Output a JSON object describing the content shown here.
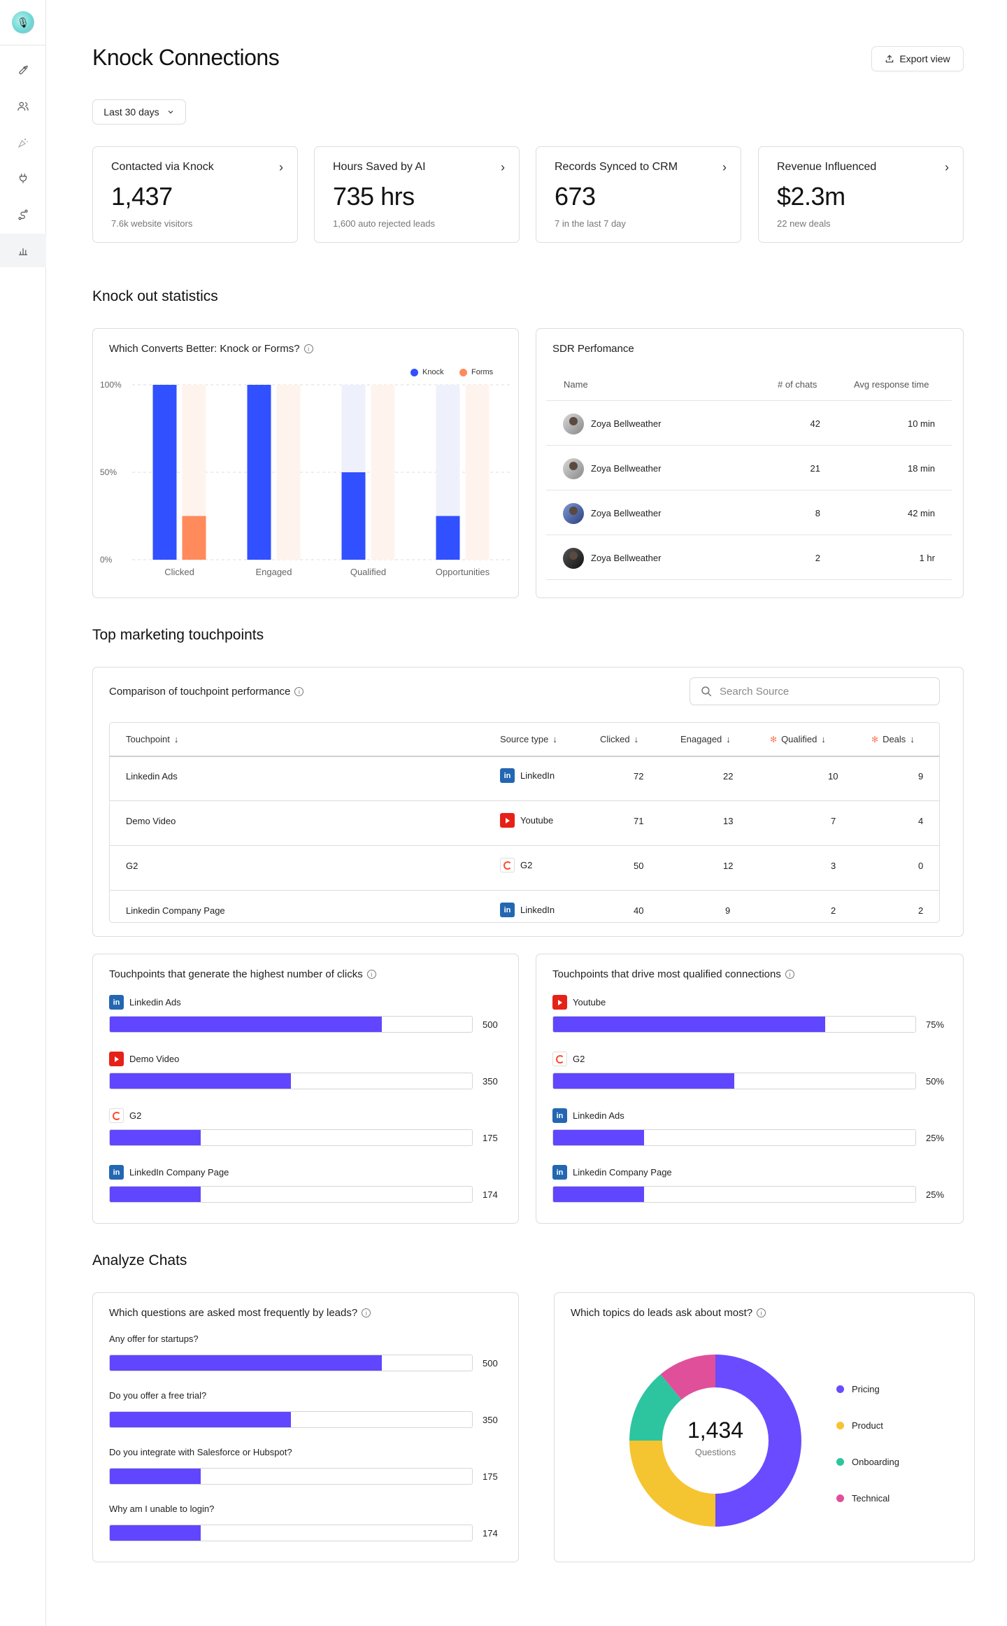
{
  "sidebar": {
    "logo_icon": "avatar-logo",
    "items": [
      {
        "name": "rocket-icon"
      },
      {
        "name": "users-icon"
      },
      {
        "name": "sparkles-icon"
      },
      {
        "name": "plug-icon"
      },
      {
        "name": "route-icon"
      },
      {
        "name": "chart-icon"
      }
    ]
  },
  "header": {
    "title": "Knock Connections",
    "export_label": "Export view",
    "range_label": "Last 30 days"
  },
  "stats": [
    {
      "label": "Contacted via Knock",
      "value": "1,437",
      "sub": "7.6k website visitors"
    },
    {
      "label": "Hours Saved by AI",
      "value": "735 hrs",
      "sub": "1,600 auto rejected leads"
    },
    {
      "label": "Records Synced to CRM",
      "value": "673",
      "sub": "7 in the last 7 day"
    },
    {
      "label": "Revenue Influenced",
      "value": "$2.3m",
      "sub": "22 new deals"
    }
  ],
  "sections": {
    "knockout": "Knock out statistics",
    "touchpoints": "Top marketing touchpoints",
    "analyze": "Analyze Chats"
  },
  "convert_chart": {
    "title": "Which Converts Better: Knock or Forms?",
    "legend": [
      "Knock",
      "Forms"
    ],
    "colors": {
      "knock": "#3150ff",
      "forms": "#ff8a5c",
      "knock_bg": "#eef1fb",
      "forms_bg": "#fff3ee"
    }
  },
  "chart_data": {
    "type": "bar",
    "categories": [
      "Clicked",
      "Engaged",
      "Qualified",
      "Opportunities"
    ],
    "series": [
      {
        "name": "Knock",
        "values": [
          100,
          100,
          50,
          25
        ]
      },
      {
        "name": "Forms",
        "values": [
          25,
          0,
          0,
          0
        ]
      }
    ],
    "yticks": [
      "0%",
      "50%",
      "100%"
    ],
    "ylim": [
      0,
      100
    ]
  },
  "sdr": {
    "title": "SDR Perfomance",
    "headers": {
      "name": "Name",
      "chats": "# of chats",
      "time": "Avg response time"
    },
    "rows": [
      {
        "name": "Zoya Bellweather",
        "chats": "42",
        "time": "10 min"
      },
      {
        "name": "Zoya Bellweather",
        "chats": "21",
        "time": "18 min"
      },
      {
        "name": "Zoya Bellweather",
        "chats": "8",
        "time": "42 min"
      },
      {
        "name": "Zoya Bellweather",
        "chats": "2",
        "time": "1 hr"
      }
    ]
  },
  "touchpoint_table": {
    "title": "Comparison of touchpoint performance",
    "search_placeholder": "Search Source",
    "headers": {
      "touchpoint": "Touchpoint",
      "source": "Source type",
      "clicked": "Clicked",
      "engaged": "Enagaged",
      "qualified": "Qualified",
      "deals": "Deals"
    },
    "rows": [
      {
        "touchpoint": "Linkedin Ads",
        "source": "LinkedIn",
        "source_icon": "linkedin",
        "clicked": "72",
        "engaged": "22",
        "qualified": "10",
        "deals": "9"
      },
      {
        "touchpoint": "Demo Video",
        "source": "Youtube",
        "source_icon": "youtube",
        "clicked": "71",
        "engaged": "13",
        "qualified": "7",
        "deals": "4"
      },
      {
        "touchpoint": "G2",
        "source": "G2",
        "source_icon": "g2",
        "clicked": "50",
        "engaged": "12",
        "qualified": "3",
        "deals": "0"
      },
      {
        "touchpoint": "Linkedin Company Page",
        "source": "LinkedIn",
        "source_icon": "linkedin",
        "clicked": "40",
        "engaged": "9",
        "qualified": "2",
        "deals": "2"
      }
    ]
  },
  "clicks_panel": {
    "title": "Touchpoints that generate the highest number of clicks",
    "bars": [
      {
        "label": "Linkedin Ads",
        "icon": "linkedin",
        "value": "500",
        "fraction": 0.75
      },
      {
        "label": "Demo Video",
        "icon": "youtube",
        "value": "350",
        "fraction": 0.5
      },
      {
        "label": "G2",
        "icon": "g2",
        "value": "175",
        "fraction": 0.25
      },
      {
        "label": "LinkedIn Company Page",
        "icon": "linkedin",
        "value": "174",
        "fraction": 0.25
      }
    ]
  },
  "qualified_panel": {
    "title": "Touchpoints that drive most qualified connections",
    "bars": [
      {
        "label": "Youtube",
        "icon": "youtube",
        "value": "75%",
        "fraction": 0.75
      },
      {
        "label": "G2",
        "icon": "g2",
        "value": "50%",
        "fraction": 0.5
      },
      {
        "label": "Linkedin Ads",
        "icon": "linkedin",
        "value": "25%",
        "fraction": 0.25
      },
      {
        "label": "Linkedin Company Page",
        "icon": "linkedin",
        "value": "25%",
        "fraction": 0.25
      }
    ]
  },
  "questions_panel": {
    "title": "Which questions are asked most frequently by leads?",
    "bars": [
      {
        "label": "Any offer for startups?",
        "value": "500",
        "fraction": 0.75
      },
      {
        "label": "Do you  offer a free trial?",
        "value": "350",
        "fraction": 0.5
      },
      {
        "label": "Do you integrate with Salesforce or Hubspot?",
        "value": "175",
        "fraction": 0.25
      },
      {
        "label": "Why am I unable to login?",
        "value": "174",
        "fraction": 0.25
      }
    ]
  },
  "topics_panel": {
    "title": "Which topics do leads ask about most?",
    "total": "1,434",
    "total_label": "Questions",
    "slices": [
      {
        "name": "Pricing",
        "fraction": 0.5,
        "color": "#6a4bff"
      },
      {
        "name": "Product",
        "fraction": 0.25,
        "color": "#f5c431"
      },
      {
        "name": "Onboarding",
        "fraction": 0.14,
        "color": "#2dc59f"
      },
      {
        "name": "Technical",
        "fraction": 0.11,
        "color": "#e0509a"
      }
    ]
  },
  "colors": {
    "bar": "#6046ff",
    "accent": "#3150ff"
  }
}
